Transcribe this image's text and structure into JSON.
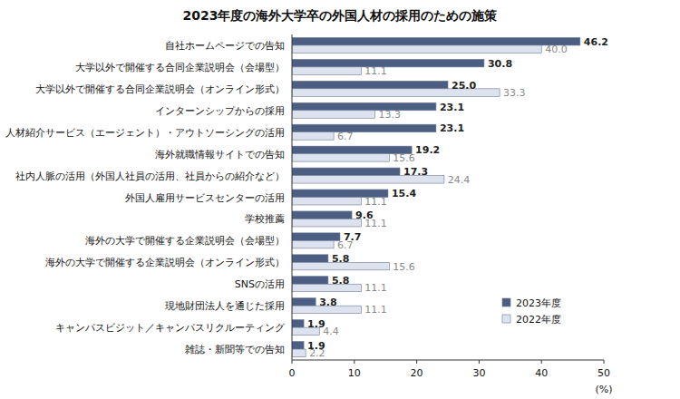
{
  "chart_data": {
    "type": "bar",
    "orientation": "horizontal",
    "title": "2023年度の海外大学卒の外国人材の採用のための施策",
    "x_label": "(%)",
    "categories": [
      "自社ホームページでの告知",
      "大学以外で開催する合同企業説明会（会場型）",
      "大学以外で開催する合同企業説明会（オンライン形式）",
      "インターンシップからの採用",
      "人材紹介サービス（エージェント）・アウトソーシングの活用",
      "海外就職情報サイトでの告知",
      "社内人脈の活用（外国人社員の活用、社員からの紹介など）",
      "外国人雇用サービスセンターの活用",
      "学校推薦",
      "海外の大学で開催する企業説明会（会場型）",
      "海外の大学で開催する企業説明会（オンライン形式）",
      "SNSの活用",
      "現地財団法人を通じた採用",
      "キャンパスビジット／キャンパスリクルーティング",
      "雑誌・新聞等での告知"
    ],
    "series": [
      {
        "name": "2023年度",
        "color": "#4c5f83",
        "values": [
          46.2,
          30.8,
          25.0,
          23.1,
          23.1,
          19.2,
          17.3,
          15.4,
          9.6,
          7.7,
          5.8,
          5.8,
          3.8,
          1.9,
          1.9
        ],
        "value_labels": [
          "46.2",
          "30.8",
          "25.0",
          "23.1",
          "23.1",
          "19.2",
          "17.3",
          "15.4",
          "9.6",
          "7.7",
          "5.8",
          "5.8",
          "3.8",
          "1.9",
          "1.9"
        ]
      },
      {
        "name": "2022年度",
        "color": "#dce3ee",
        "values": [
          40.0,
          11.1,
          33.3,
          13.3,
          6.7,
          15.6,
          24.4,
          11.1,
          11.1,
          6.7,
          15.6,
          11.1,
          11.1,
          4.4,
          2.2
        ],
        "value_labels": [
          "40.0",
          "11.1",
          "33.3",
          "13.3",
          "6.7",
          "15.6",
          "24.4",
          "11.1",
          "11.1",
          "6.7",
          "15.6",
          "11.1",
          "11.1",
          "4.4",
          "2.2"
        ]
      }
    ],
    "xlim": [
      0,
      50
    ],
    "xticks": [
      0,
      10,
      20,
      30,
      40,
      50
    ],
    "grid": false,
    "legend": "lower right",
    "data_labels": true
  }
}
